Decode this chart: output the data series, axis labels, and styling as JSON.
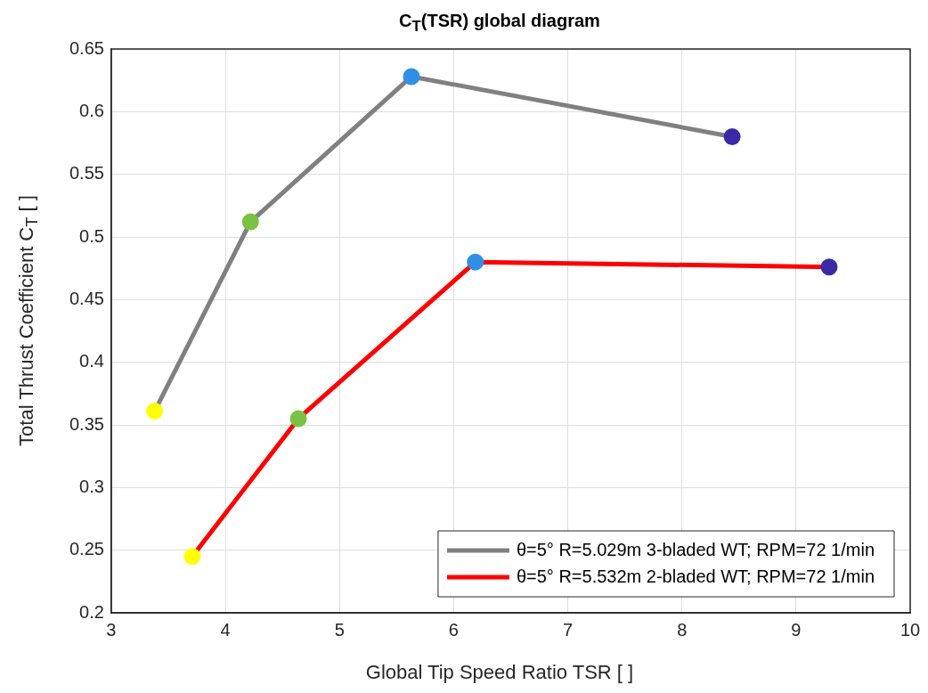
{
  "chart_data": {
    "type": "line",
    "title": "C$_{T}$(TSR) global diagram",
    "xlabel": "Global Tip Speed Ratio TSR [ ]",
    "ylabel": "Total Thrust Coefficient C$_{T}$ [ ]",
    "xlim": [
      3,
      10
    ],
    "xticks": [
      3,
      4,
      5,
      6,
      7,
      8,
      9,
      10
    ],
    "ylim": [
      0.2,
      0.65
    ],
    "yticks": [
      0.2,
      0.25,
      0.3,
      0.35,
      0.4,
      0.45,
      0.5,
      0.55,
      0.6,
      0.65
    ],
    "grid": true,
    "legend": "bottom right",
    "marker": "circle",
    "line_style": "solid",
    "series": [
      {
        "name": "θ=5° R=5.029m 3-bladed WT; RPM=72 1/min",
        "color": "#808080",
        "x": [
          3.38,
          4.22,
          5.63,
          8.44
        ],
        "values": [
          0.361,
          0.512,
          0.628,
          0.58
        ],
        "colors": [
          "#ffff00",
          "#7cc242",
          "#2f8fe6",
          "#3a2aa6"
        ]
      },
      {
        "name": "θ=5° R=5.532m 2-bladed WT; RPM=72 1/min",
        "color": "#ff0000",
        "x": [
          3.71,
          4.64,
          6.19,
          9.29
        ],
        "values": [
          0.245,
          0.355,
          0.48,
          0.476
        ],
        "colors": [
          "#ffff00",
          "#7cc242",
          "#2f8fe6",
          "#3a2aa6"
        ]
      }
    ]
  }
}
